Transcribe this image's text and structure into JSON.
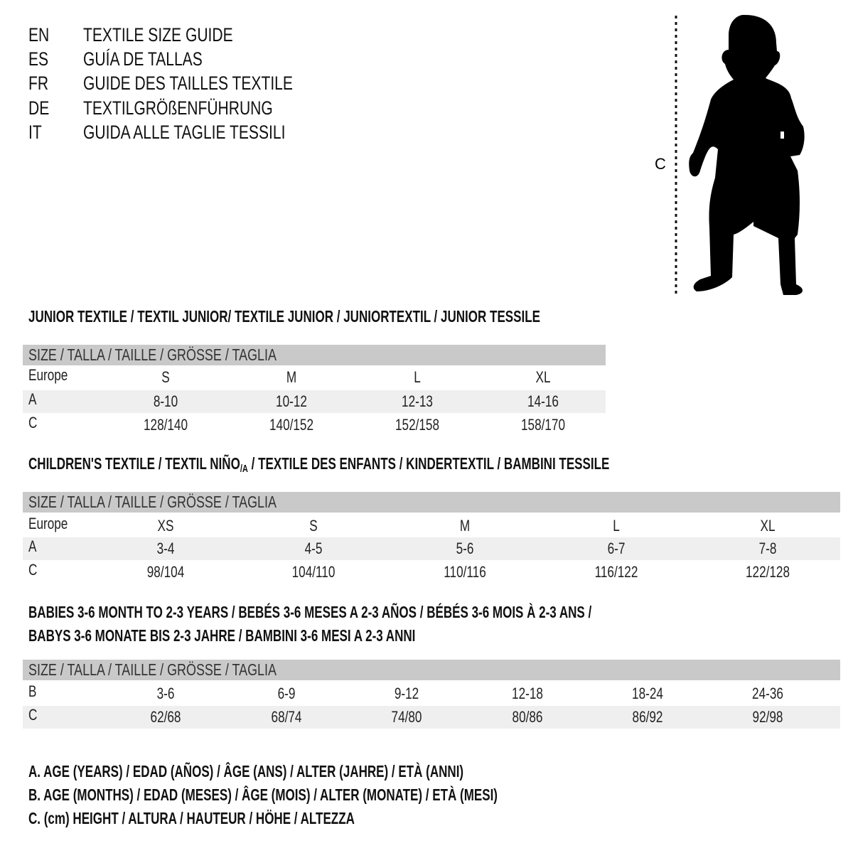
{
  "languages": [
    {
      "code": "EN",
      "title": "TEXTILE SIZE GUIDE"
    },
    {
      "code": "ES",
      "title": "GUÍA DE TALLAS"
    },
    {
      "code": "FR",
      "title": "GUIDE DES TAILLES TEXTILE"
    },
    {
      "code": "DE",
      "title": "TEXTILGRÖßENFÜHRUNG"
    },
    {
      "code": "IT",
      "title": "GUIDA ALLE TAGLIE TESSILI"
    }
  ],
  "figure": {
    "measure_label": "C",
    "icon": "baby-silhouette"
  },
  "size_header": "SIZE / TALLA / TAILLE / GRÖSSE / TAGLIA",
  "colors": {
    "header_bar": "#c9c9c9",
    "row_shade": "#efefef"
  },
  "junior": {
    "heading": "JUNIOR TEXTILE / TEXTIL JUNIOR/ TEXTILE JUNIOR / JUNIORTEXTIL / JUNIOR TESSILE",
    "rows": [
      {
        "label": "Europe",
        "values": [
          "S",
          "M",
          "L",
          "XL"
        ]
      },
      {
        "label": "A",
        "values": [
          "8-10",
          "10-12",
          "12-13",
          "14-16"
        ]
      },
      {
        "label": "C",
        "values": [
          "128/140",
          "140/152",
          "152/158",
          "158/170"
        ]
      }
    ]
  },
  "children": {
    "heading_a": "CHILDREN'S TEXTILE / TEXTIL NIÑO",
    "heading_sub": "/A",
    "heading_b": " / TEXTILE DES ENFANTS / KINDERTEXTIL / BAMBINI TESSILE",
    "rows": [
      {
        "label": "Europe",
        "values": [
          "XS",
          "S",
          "M",
          "L",
          "XL"
        ]
      },
      {
        "label": "A",
        "values": [
          "3-4",
          "4-5",
          "5-6",
          "6-7",
          "7-8"
        ]
      },
      {
        "label": "C",
        "values": [
          "98/104",
          "104/110",
          "110/116",
          "116/122",
          "122/128"
        ]
      }
    ]
  },
  "babies": {
    "heading_1": "BABIES 3-6 MONTH TO 2-3 YEARS / BEBÉS 3-6 MESES A 2-3 AÑOS / BÉBÉS 3-6 MOIS À 2-3 ANS /",
    "heading_2": "BABYS 3-6 MONATE BIS 2-3 JAHRE / BAMBINI 3-6 MESI A 2-3 ANNI",
    "rows": [
      {
        "label": "B",
        "values": [
          "3-6",
          "6-9",
          "9-12",
          "12-18",
          "18-24",
          "24-36"
        ]
      },
      {
        "label": "C",
        "values": [
          "62/68",
          "68/74",
          "74/80",
          "80/86",
          "86/92",
          "92/98"
        ]
      }
    ]
  },
  "legend": [
    "A. AGE (YEARS) / EDAD (AÑOS) / ÂGE (ANS) / ALTER (JAHRE) / ETÀ (ANNI)",
    "B. AGE (MONTHS) / EDAD (MESES) / ÂGE (MOIS) / ALTER (MONATE) / ETÀ (MESI)",
    "C. (cm) HEIGHT / ALTURA / HAUTEUR / HÖHE / ALTEZZA"
  ]
}
